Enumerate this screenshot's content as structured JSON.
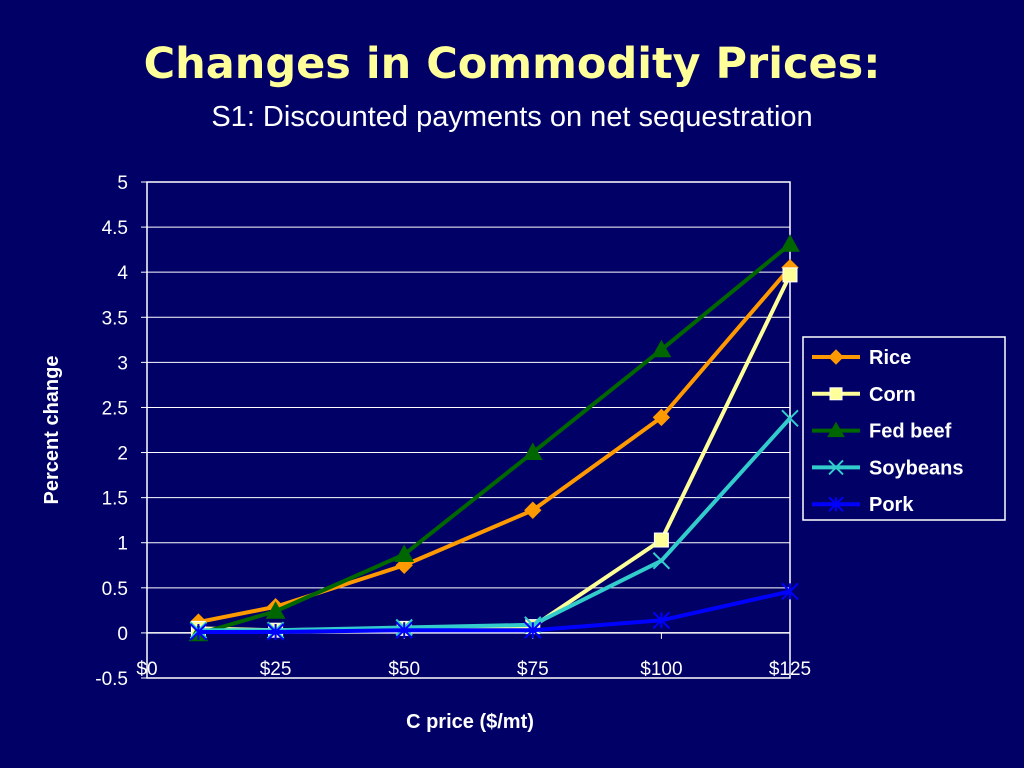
{
  "slide": {
    "title": "Changes in Commodity Prices:",
    "subtitle": "S1: Discounted payments on net sequestration"
  },
  "chart_data": {
    "type": "line",
    "xlabel": "C price ($/mt)",
    "ylabel": "Percent change",
    "ylim": [
      -0.5,
      5
    ],
    "yticks": [
      "5",
      "4.5",
      "4",
      "3.5",
      "3",
      "2.5",
      "2",
      "1.5",
      "1",
      "0.5",
      "0",
      "-0.5"
    ],
    "xlim": [
      0,
      125
    ],
    "xticks": [
      "$0",
      "$25",
      "$50",
      "$75",
      "$100",
      "$125"
    ],
    "x": [
      10,
      25,
      50,
      75,
      100,
      125
    ],
    "grid": "horizontal",
    "legend_position": "right",
    "series": [
      {
        "name": "Rice",
        "values": [
          0.12,
          0.29,
          0.75,
          1.36,
          2.39,
          4.05
        ],
        "color": "#FF9900",
        "marker": "diamond"
      },
      {
        "name": "Corn",
        "values": [
          0.05,
          0.03,
          0.05,
          0.07,
          1.03,
          3.97
        ],
        "color": "#FFFF99",
        "marker": "square"
      },
      {
        "name": "Fed beef",
        "values": [
          -0.01,
          0.24,
          0.87,
          2.0,
          3.14,
          4.31
        ],
        "color": "#006600",
        "marker": "triangle"
      },
      {
        "name": "Soybeans",
        "values": [
          0.03,
          0.03,
          0.06,
          0.09,
          0.8,
          2.38
        ],
        "color": "#33CCCC",
        "marker": "x"
      },
      {
        "name": "Pork",
        "values": [
          0.01,
          0.01,
          0.03,
          0.03,
          0.14,
          0.46
        ],
        "color": "#0000FF",
        "marker": "star"
      }
    ]
  }
}
